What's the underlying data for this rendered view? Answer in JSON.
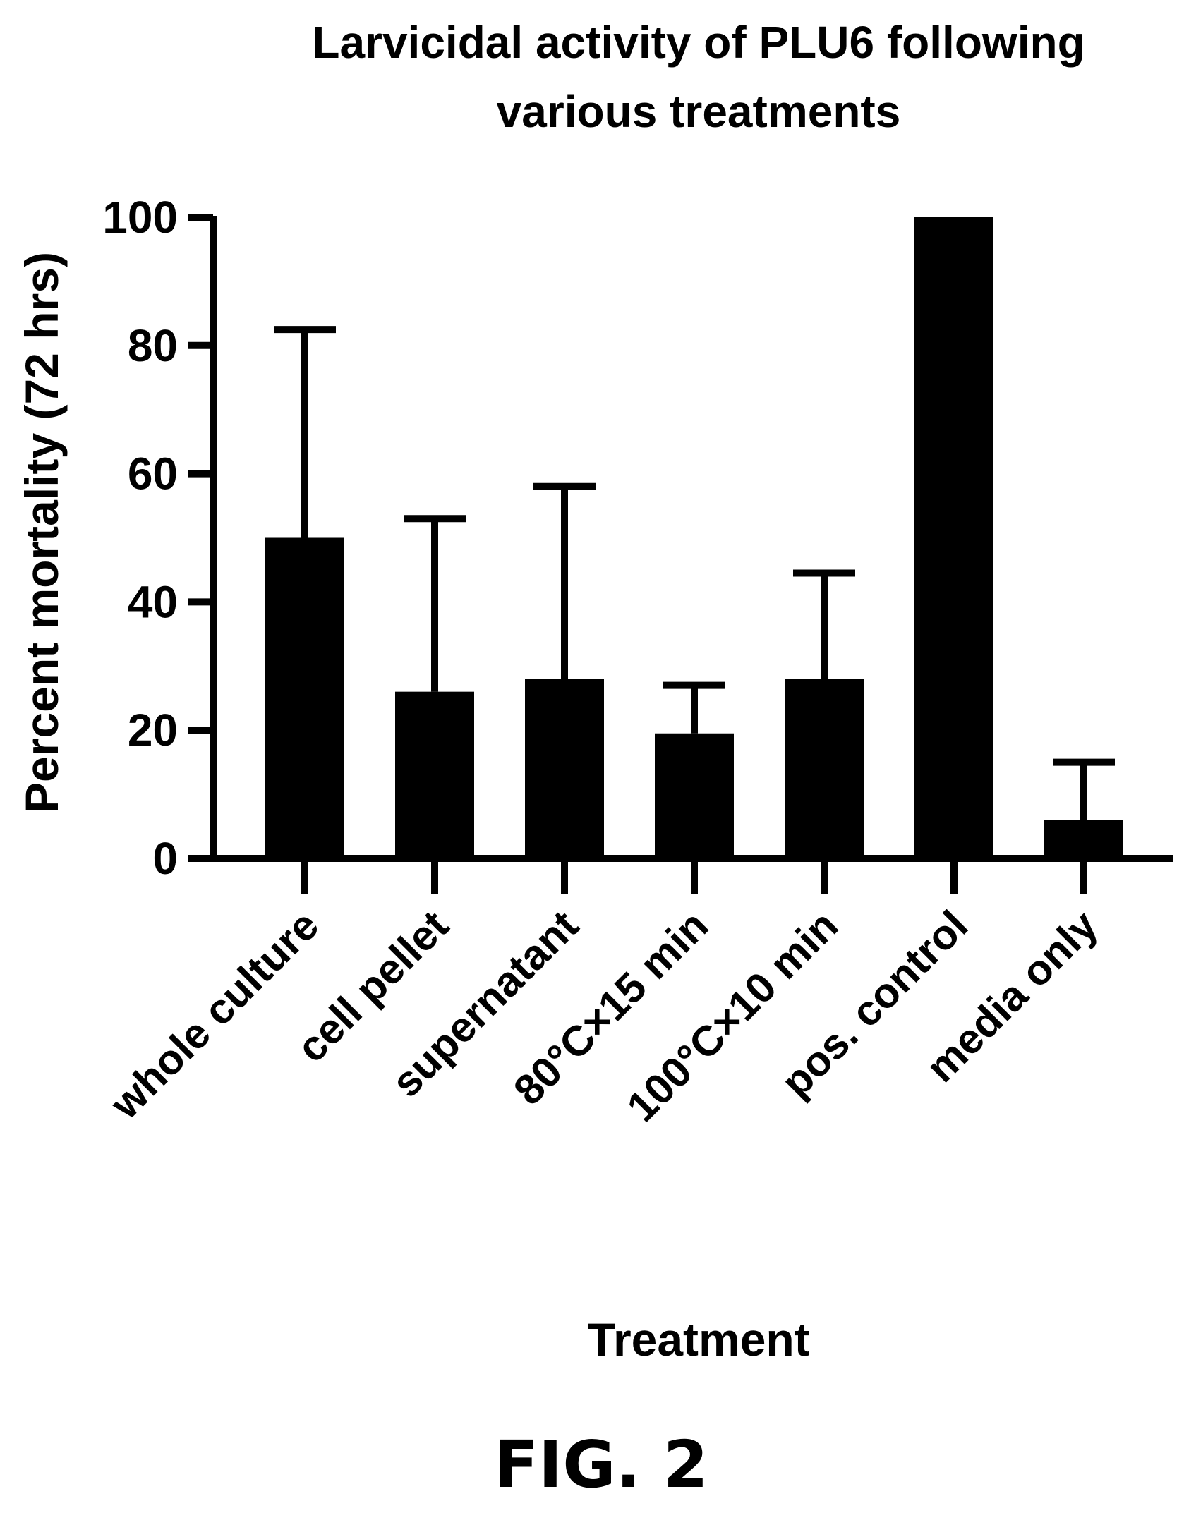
{
  "chart_data": {
    "type": "bar",
    "title": [
      "Larvicidal activity of PLU6 following",
      "various treatments"
    ],
    "xlabel": "Treatment",
    "ylabel": "Percent mortality (72 hrs)",
    "ylim": [
      0,
      100
    ],
    "yticks": [
      "0",
      "20",
      "40",
      "60",
      "80",
      "100"
    ],
    "categories": [
      "whole culture",
      "cell pellet",
      "supernatant",
      "80°C×15 min",
      "100°C×10 min",
      "pos. control",
      "media only"
    ],
    "values": [
      50,
      26,
      28,
      19.5,
      28,
      100,
      6
    ],
    "error_upper": [
      82.5,
      53,
      58,
      27,
      44.5,
      100,
      15
    ],
    "bar_color": "#000000",
    "grid": false,
    "legend": "none"
  },
  "figure_label": "FIG. 2"
}
